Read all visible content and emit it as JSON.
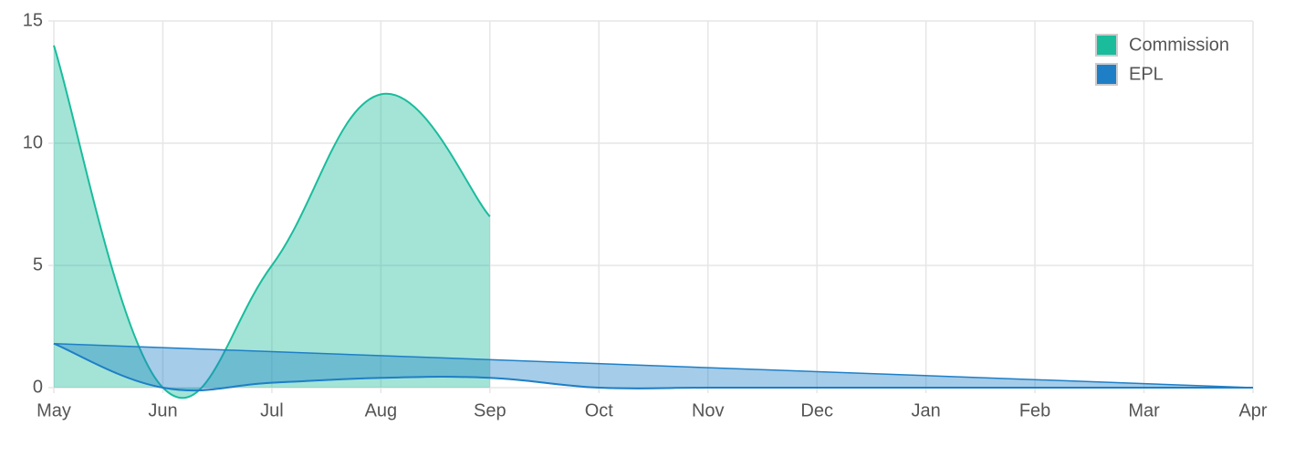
{
  "chart_data": {
    "type": "area",
    "categories": [
      "May",
      "Jun",
      "Jul",
      "Aug",
      "Sep",
      "Oct",
      "Nov",
      "Dec",
      "Jan",
      "Feb",
      "Mar",
      "Apr"
    ],
    "series": [
      {
        "name": "Commission",
        "color": "#1abc9c",
        "values": [
          14,
          0,
          5,
          12,
          7,
          null,
          null,
          null,
          null,
          null,
          null,
          null
        ]
      },
      {
        "name": "EPL",
        "color": "#1f7fc6",
        "values": [
          1.8,
          0,
          0.2,
          0.4,
          0.4,
          0,
          0,
          0,
          0,
          0,
          0,
          0
        ]
      }
    ],
    "ylim": [
      0,
      15
    ],
    "yticks": [
      0,
      5,
      10,
      15
    ],
    "grid": true,
    "legend": "top-right"
  }
}
